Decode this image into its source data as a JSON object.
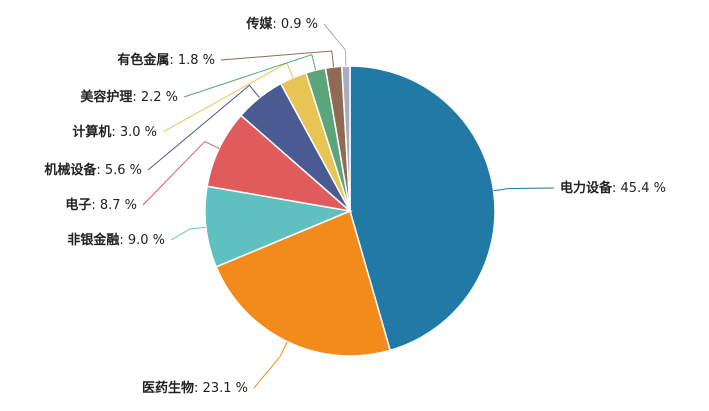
{
  "chart_data": {
    "type": "pie",
    "categories": [
      "电力设备",
      "医药生物",
      "非银金融",
      "电子",
      "机械设备",
      "计算机",
      "美容护理",
      "有色金属",
      "传媒"
    ],
    "values": [
      45.4,
      23.1,
      9.0,
      8.7,
      5.6,
      3.0,
      2.2,
      1.8,
      0.9
    ],
    "value_labels": [
      ": 45.4 %",
      ": 23.1 %",
      ": 9.0 %",
      ": 8.7 %",
      ": 5.6 %",
      ": 3.0 %",
      ": 2.2 %",
      ": 1.8 %",
      ": 0.9 %"
    ],
    "colors": [
      "#2179a5",
      "#f28b1c",
      "#60c0c0",
      "#e05c5c",
      "#4a5a92",
      "#e8c454",
      "#5ca57b",
      "#8f6b52",
      "#a8adc4"
    ]
  }
}
